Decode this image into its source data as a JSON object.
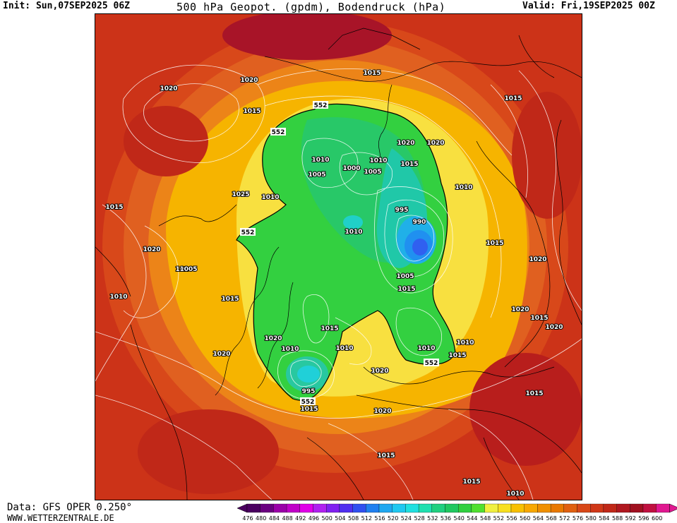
{
  "header": {
    "init": "Init: Sun,07SEP2025 06Z",
    "title": "500 hPa Geopot. (gpdm), Bodendruck (hPa)",
    "valid": "Valid: Fri,19SEP2025 00Z"
  },
  "footer": {
    "data_source": "Data: GFS OPER 0.250°",
    "website": "WWW.WETTERZENTRALE.DE"
  },
  "legend": {
    "ticks": [
      "476",
      "480",
      "484",
      "488",
      "492",
      "496",
      "500",
      "504",
      "508",
      "512",
      "516",
      "520",
      "524",
      "528",
      "532",
      "536",
      "540",
      "544",
      "548",
      "552",
      "556",
      "560",
      "564",
      "568",
      "572",
      "576",
      "580",
      "584",
      "588",
      "592",
      "596",
      "600"
    ],
    "colors": [
      "#4a0060",
      "#6a0080",
      "#9a00a8",
      "#c000c8",
      "#e000e8",
      "#b020f0",
      "#8020f0",
      "#5030f0",
      "#3050f0",
      "#2080f0",
      "#20a8f0",
      "#20c8f0",
      "#20e0e0",
      "#20e0b0",
      "#20d080",
      "#20c860",
      "#30d040",
      "#50e030",
      "#f0f040",
      "#f8e020",
      "#f8c000",
      "#f8a800",
      "#f09000",
      "#e87800",
      "#e06010",
      "#d84818",
      "#d03818",
      "#c02818",
      "#b01820",
      "#a01020",
      "#c01040",
      "#e01890"
    ]
  },
  "map": {
    "geopotential_labels": [
      "552",
      "552",
      "552",
      "552",
      "552"
    ],
    "pressure_labels": [
      "1020",
      "1020",
      "1015",
      "1015",
      "1015",
      "1020",
      "1020",
      "1015",
      "1010",
      "1005",
      "1000",
      "1005",
      "1010",
      "995",
      "990",
      "1010",
      "1005",
      "1015",
      "1010",
      "1015",
      "1010",
      "1020",
      "1015",
      "1025",
      "1010",
      "1020",
      "1020",
      "1005",
      "1010",
      "1015",
      "1020",
      "1020",
      "1010",
      "1010",
      "1015",
      "1015",
      "1020",
      "1015",
      "1015",
      "1010",
      "995",
      "1015",
      "1020",
      "1020",
      "1015",
      "1010",
      "1020",
      "1015"
    ]
  }
}
